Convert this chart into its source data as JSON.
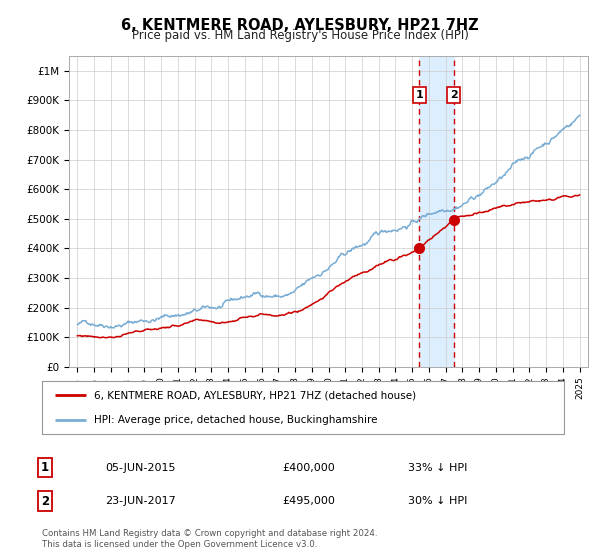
{
  "title": "6, KENTMERE ROAD, AYLESBURY, HP21 7HZ",
  "subtitle": "Price paid vs. HM Land Registry's House Price Index (HPI)",
  "hpi_label": "HPI: Average price, detached house, Buckinghamshire",
  "property_label": "6, KENTMERE ROAD, AYLESBURY, HP21 7HZ (detached house)",
  "sale1_date": "05-JUN-2015",
  "sale1_price": 400000,
  "sale1_hpi_diff": "33% ↓ HPI",
  "sale2_date": "23-JUN-2017",
  "sale2_price": 495000,
  "sale2_hpi_diff": "30% ↓ HPI",
  "sale1_x": 2015.43,
  "sale2_x": 2017.48,
  "red_color": "#cc0000",
  "blue_color": "#7aadd4",
  "shading_color": "#ddeeff",
  "footer": "Contains HM Land Registry data © Crown copyright and database right 2024.\nThis data is licensed under the Open Government Licence v3.0.",
  "ylim_max": 1050000,
  "ylim_min": 0,
  "xlim_min": 1994.5,
  "xlim_max": 2025.5,
  "yticks": [
    0,
    100000,
    200000,
    300000,
    400000,
    500000,
    600000,
    700000,
    800000,
    900000,
    1000000
  ],
  "ytick_labels": [
    "£0",
    "£100K",
    "£200K",
    "£300K",
    "£400K",
    "£500K",
    "£600K",
    "£700K",
    "£800K",
    "£900K",
    "£1M"
  ]
}
